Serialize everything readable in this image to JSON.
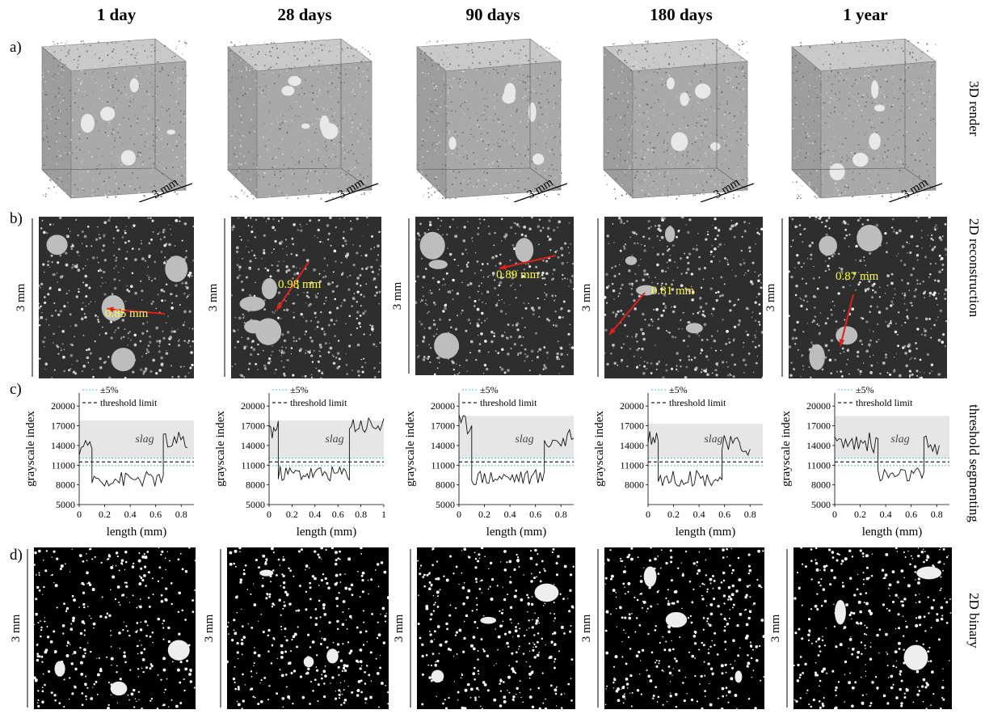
{
  "columns": [
    {
      "title": "1 day",
      "measurement": "0.85 mm"
    },
    {
      "title": "28 days",
      "measurement": "0.98 mm"
    },
    {
      "title": "90 days",
      "measurement": "0.89 mm"
    },
    {
      "title": "180 days",
      "measurement": "0.81 mm"
    },
    {
      "title": "1 year",
      "measurement": "0.87 mm"
    }
  ],
  "rows": {
    "a": {
      "letter": "a)",
      "side": "3D render"
    },
    "b": {
      "letter": "b)",
      "side": "2D reconstruction"
    },
    "c": {
      "letter": "c)",
      "side": "threshold segmenting"
    },
    "d": {
      "letter": "d)",
      "side": "2D binary"
    }
  },
  "dimension": "3 mm",
  "chart_common": {
    "ylabel": "grayscale index",
    "xlabel": "length (mm)",
    "legend": [
      "±5%",
      "threshold limit"
    ],
    "region_label": "slag",
    "threshold": 11500,
    "band": [
      10925,
      12075
    ],
    "colors": {
      "band": "#4fb6d8",
      "threshold": "#222222",
      "slag_region": "#e6e6e6",
      "line": "#111111"
    }
  },
  "chart_data": [
    {
      "type": "line",
      "xlim": [
        0,
        0.9
      ],
      "xticks": [
        "0",
        "0.2",
        "0.4",
        "0.6",
        "0.8"
      ],
      "yticks": [
        "5000",
        "8000",
        "11000",
        "14000",
        "17000",
        "20000"
      ],
      "ylim": [
        5000,
        22000
      ],
      "slag_y": [
        12100,
        17800
      ],
      "segments": [
        {
          "x0": 0.0,
          "x1": 0.1,
          "y0": 11000,
          "y1": 14500,
          "mean": 13200
        },
        {
          "x0": 0.1,
          "x1": 0.66,
          "mean": 8900
        },
        {
          "x0": 0.66,
          "x1": 0.85,
          "mean": 14500
        }
      ]
    },
    {
      "type": "line",
      "xlim": [
        0,
        1
      ],
      "xticks": [
        "0",
        "0.2",
        "0.4",
        "0.6",
        "0.8",
        "1"
      ],
      "yticks": [
        "5000",
        "8000",
        "11000",
        "14000",
        "17000",
        "20000"
      ],
      "ylim": [
        5000,
        22000
      ],
      "slag_y": [
        12100,
        17800
      ],
      "segments": [
        {
          "x0": 0.0,
          "x1": 0.08,
          "mean": 16500
        },
        {
          "x0": 0.08,
          "x1": 0.7,
          "mean": 9800
        },
        {
          "x0": 0.7,
          "x1": 1.0,
          "mean": 17200
        }
      ]
    },
    {
      "type": "line",
      "xlim": [
        0,
        0.9
      ],
      "xticks": [
        "0",
        "0.2",
        "0.4",
        "0.6",
        "0.8"
      ],
      "yticks": [
        "5000",
        "8000",
        "11000",
        "14000",
        "17000",
        "20000"
      ],
      "ylim": [
        5000,
        22000
      ],
      "slag_y": [
        12100,
        18500
      ],
      "segments": [
        {
          "x0": 0.0,
          "x1": 0.1,
          "mean": 17300
        },
        {
          "x0": 0.1,
          "x1": 0.67,
          "mean": 9200
        },
        {
          "x0": 0.67,
          "x1": 0.9,
          "mean": 14800
        }
      ]
    },
    {
      "type": "line",
      "xlim": [
        0,
        0.9
      ],
      "xticks": [
        "0",
        "0.2",
        "0.4",
        "0.6",
        "0.8"
      ],
      "yticks": [
        "8000",
        "11000",
        "14000",
        "17000",
        "20000"
      ],
      "ylim": [
        5000,
        22000
      ],
      "slag_y": [
        12100,
        17300
      ],
      "segments": [
        {
          "x0": 0.0,
          "x1": 0.08,
          "mean": 15500
        },
        {
          "x0": 0.08,
          "x1": 0.58,
          "mean": 9000
        },
        {
          "x0": 0.58,
          "x1": 0.8,
          "mean": 14000
        }
      ]
    },
    {
      "type": "line",
      "xlim": [
        0,
        0.9
      ],
      "xticks": [
        "0",
        "0.2",
        "0.4",
        "0.6",
        "0.8"
      ],
      "yticks": [
        "5000",
        "8000",
        "11000",
        "14000",
        "17000",
        "20000"
      ],
      "ylim": [
        5000,
        22000
      ],
      "slag_y": [
        12100,
        18500
      ],
      "segments": [
        {
          "x0": 0.0,
          "x1": 0.34,
          "mean": 14500
        },
        {
          "x0": 0.34,
          "x1": 0.7,
          "mean": 9500
        },
        {
          "x0": 0.7,
          "x1": 0.82,
          "mean": 14000
        }
      ]
    }
  ]
}
